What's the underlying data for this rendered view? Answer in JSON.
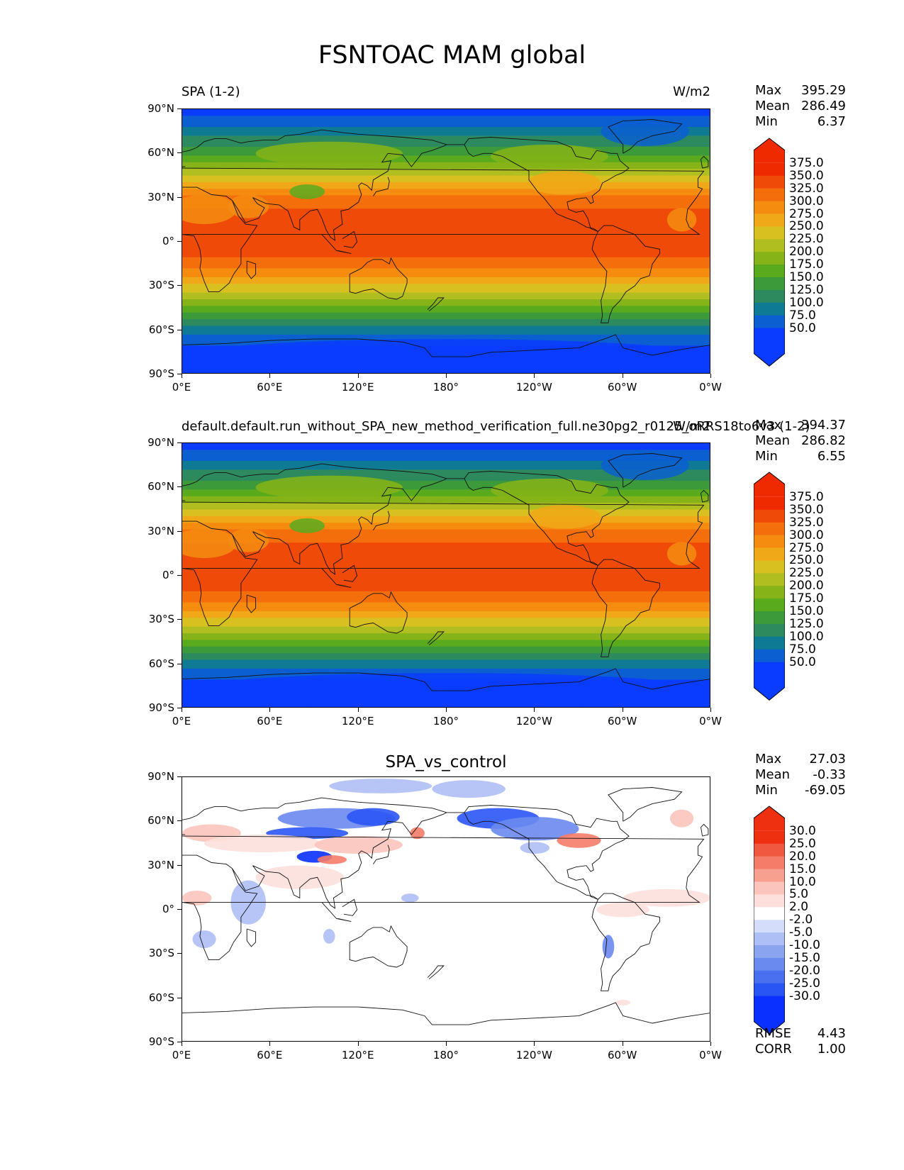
{
  "title": "FSNTOAC MAM global",
  "axes": {
    "yticks": [
      "90°N",
      "60°N",
      "30°N",
      "0°",
      "30°S",
      "60°S",
      "90°S"
    ],
    "xticks": [
      "0°E",
      "60°E",
      "120°E",
      "180°",
      "120°W",
      "60°W",
      "0°W"
    ]
  },
  "panels": [
    {
      "title_left": "SPA (1-2)",
      "title_right": "W/m2",
      "title_center": "",
      "stats": [
        {
          "label": "Max",
          "value": "395.29"
        },
        {
          "label": "Mean",
          "value": "286.49"
        },
        {
          "label": "Min",
          "value": "6.37"
        }
      ],
      "colorbar_labels": [
        "375.0",
        "350.0",
        "325.0",
        "300.0",
        "275.0",
        "250.0",
        "225.0",
        "200.0",
        "175.0",
        "150.0",
        "125.0",
        "100.0",
        "75.0",
        "50.0"
      ],
      "extra_stats": []
    },
    {
      "title_left": "default.default.run_without_SPA_new_method_verification_full.ne30pg2_r0125_oRRS18to6v3 (1-2)",
      "title_right": "W/m2",
      "title_center": "",
      "stats": [
        {
          "label": "Max",
          "value": "394.37"
        },
        {
          "label": "Mean",
          "value": "286.82"
        },
        {
          "label": "Min",
          "value": "6.55"
        }
      ],
      "colorbar_labels": [
        "375.0",
        "350.0",
        "325.0",
        "300.0",
        "275.0",
        "250.0",
        "225.0",
        "200.0",
        "175.0",
        "150.0",
        "125.0",
        "100.0",
        "75.0",
        "50.0"
      ],
      "extra_stats": []
    },
    {
      "title_left": "",
      "title_right": "",
      "title_center": "SPA_vs_control",
      "stats": [
        {
          "label": "Max",
          "value": "27.03"
        },
        {
          "label": "Mean",
          "value": "-0.33"
        },
        {
          "label": "Min",
          "value": "-69.05"
        }
      ],
      "colorbar_labels": [
        "30.0",
        "25.0",
        "20.0",
        "15.0",
        "10.0",
        "5.0",
        "2.0",
        "-2.0",
        "-5.0",
        "-10.0",
        "-15.0",
        "-20.0",
        "-25.0",
        "-30.0"
      ],
      "extra_stats": [
        {
          "label": "RMSE",
          "value": "4.43"
        },
        {
          "label": "CORR",
          "value": "1.00"
        }
      ]
    }
  ],
  "chart_data": [
    {
      "type": "heatmap",
      "title": "SPA (1-2)",
      "units": "W/m2",
      "xlim": [
        0,
        360
      ],
      "ylim": [
        -90,
        90
      ],
      "colorbar": {
        "levels": [
          50,
          75,
          100,
          125,
          150,
          175,
          200,
          225,
          250,
          275,
          300,
          325,
          350,
          375
        ],
        "colors": [
          "#0a3cff",
          "#0b5fd0",
          "#0f7a94",
          "#2d8a5e",
          "#3c9a3a",
          "#5aaa1e",
          "#86b418",
          "#b0be20",
          "#d8c020",
          "#f0a818",
          "#f58c10",
          "#f56e0c",
          "#f04a08",
          "#f02a00"
        ],
        "extend": "both"
      },
      "zonal_mean_profile": {
        "lat": [
          -90,
          -75,
          -60,
          -45,
          -30,
          -15,
          0,
          15,
          30,
          45,
          60,
          75,
          90
        ],
        "value": [
          40,
          60,
          110,
          190,
          270,
          340,
          375,
          370,
          330,
          250,
          170,
          110,
          60
        ]
      },
      "stats": {
        "max": 395.29,
        "mean": 286.49,
        "min": 6.37
      }
    },
    {
      "type": "heatmap",
      "title": "default.default.run_without_SPA_new_method_verification_full.ne30pg2_r0125_oRRS18to6v3 (1-2)",
      "units": "W/m2",
      "xlim": [
        0,
        360
      ],
      "ylim": [
        -90,
        90
      ],
      "colorbar": {
        "levels": [
          50,
          75,
          100,
          125,
          150,
          175,
          200,
          225,
          250,
          275,
          300,
          325,
          350,
          375
        ],
        "colors": [
          "#0a3cff",
          "#0b5fd0",
          "#0f7a94",
          "#2d8a5e",
          "#3c9a3a",
          "#5aaa1e",
          "#86b418",
          "#b0be20",
          "#d8c020",
          "#f0a818",
          "#f58c10",
          "#f56e0c",
          "#f04a08",
          "#f02a00"
        ],
        "extend": "both"
      },
      "zonal_mean_profile": {
        "lat": [
          -90,
          -75,
          -60,
          -45,
          -30,
          -15,
          0,
          15,
          30,
          45,
          60,
          75,
          90
        ],
        "value": [
          40,
          60,
          110,
          190,
          270,
          340,
          375,
          370,
          330,
          250,
          170,
          110,
          60
        ]
      },
      "stats": {
        "max": 394.37,
        "mean": 286.82,
        "min": 6.55
      }
    },
    {
      "type": "heatmap",
      "title": "SPA_vs_control",
      "xlim": [
        0,
        360
      ],
      "ylim": [
        -90,
        90
      ],
      "colorbar": {
        "levels": [
          -30,
          -25,
          -20,
          -15,
          -10,
          -5,
          -2,
          2,
          5,
          10,
          15,
          20,
          25,
          30
        ],
        "colors": [
          "#0a30ff",
          "#2a55f5",
          "#4a70f0",
          "#6a8af0",
          "#8aa4f0",
          "#aebff5",
          "#d4ddfa",
          "#ffffff",
          "#fde0dc",
          "#fbc4bc",
          "#f8a090",
          "#f57c68",
          "#f05840",
          "#ee3010"
        ],
        "extend": "both"
      },
      "stats": {
        "max": 27.03,
        "mean": -0.33,
        "min": -69.05,
        "rmse": 4.43,
        "corr": 1.0
      }
    }
  ]
}
